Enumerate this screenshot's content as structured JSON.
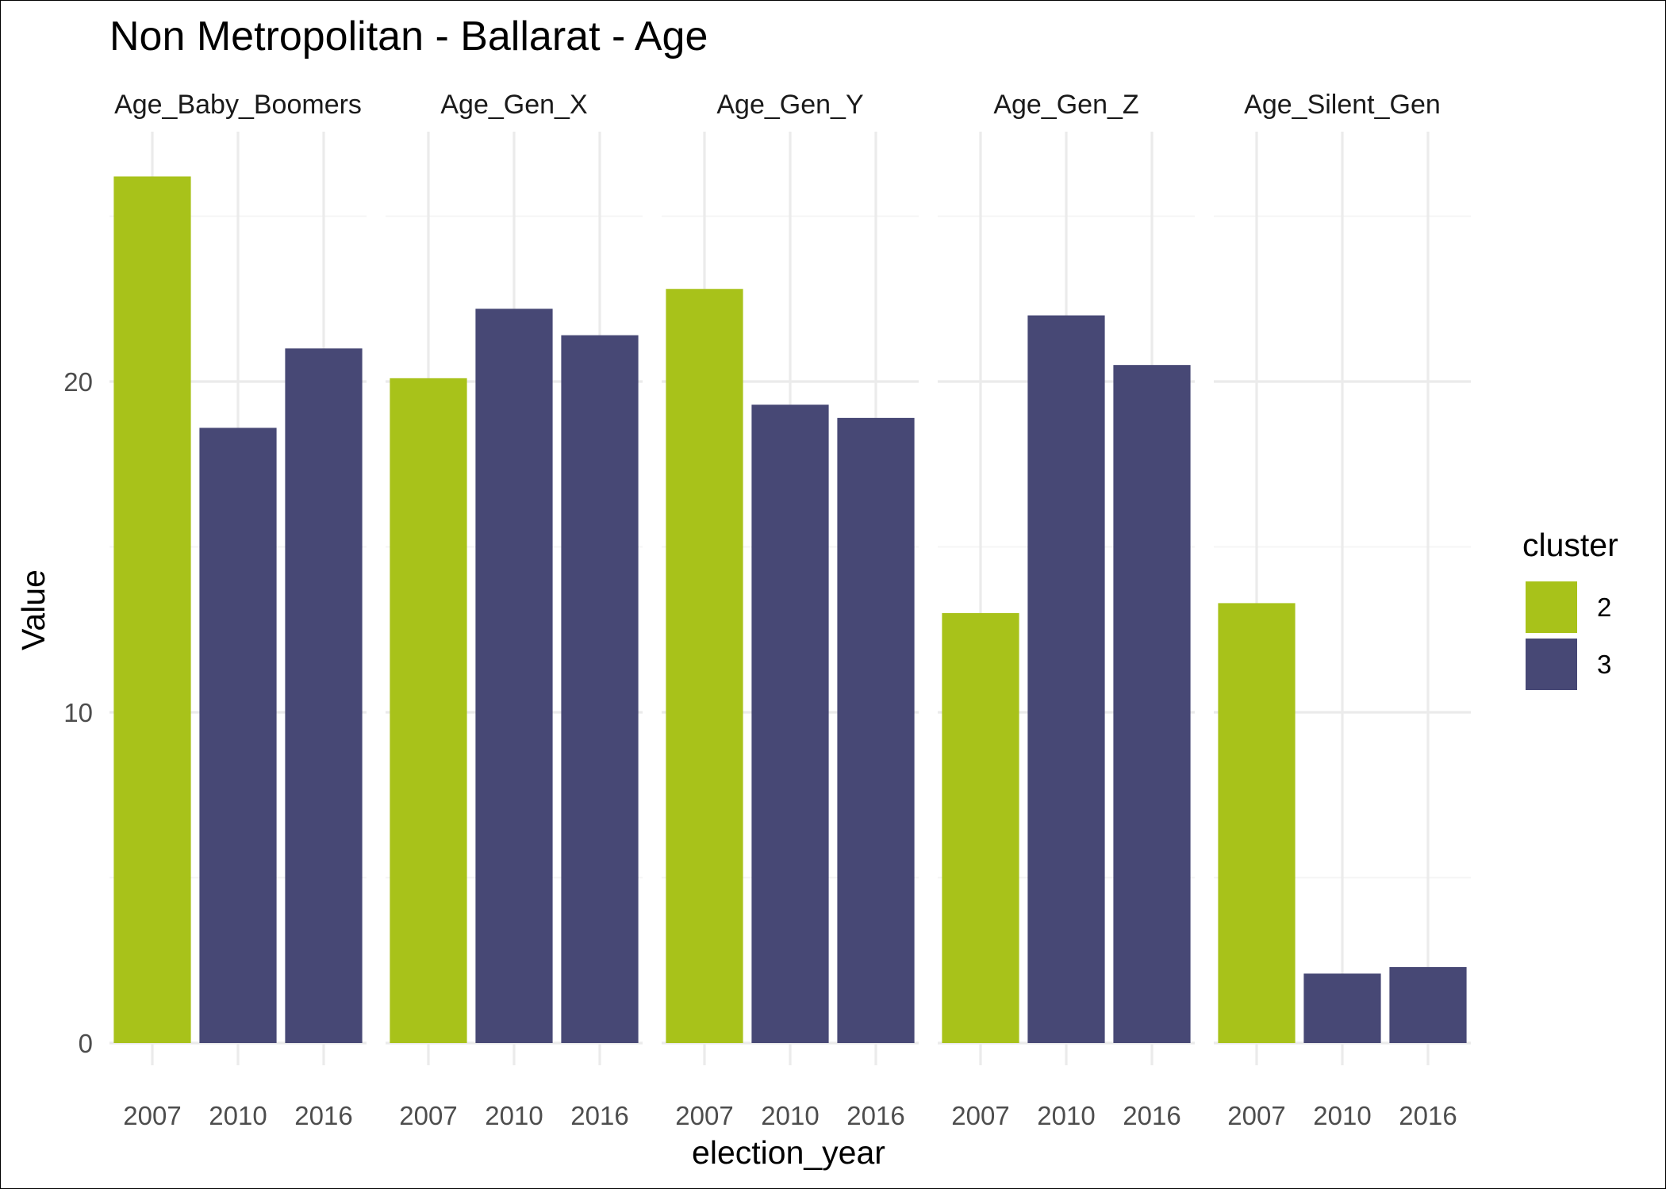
{
  "chart_data": {
    "type": "bar",
    "title": "Non Metropolitan - Ballarat - Age",
    "xlabel": "election_year",
    "ylabel": "Value",
    "ylim": [
      0,
      27.5
    ],
    "yticks": [
      0,
      10,
      20
    ],
    "grid": true,
    "categories": [
      "2007",
      "2010",
      "2016"
    ],
    "facets": [
      {
        "name": "Age_Baby_Boomers",
        "values": [
          26.2,
          18.6,
          21.0
        ],
        "clusters": [
          "2",
          "3",
          "3"
        ]
      },
      {
        "name": "Age_Gen_X",
        "values": [
          20.1,
          22.2,
          21.4
        ],
        "clusters": [
          "2",
          "3",
          "3"
        ]
      },
      {
        "name": "Age_Gen_Y",
        "values": [
          22.8,
          19.3,
          18.9
        ],
        "clusters": [
          "2",
          "3",
          "3"
        ]
      },
      {
        "name": "Age_Gen_Z",
        "values": [
          13.0,
          22.0,
          20.5
        ],
        "clusters": [
          "2",
          "3",
          "3"
        ]
      },
      {
        "name": "Age_Silent_Gen",
        "values": [
          13.3,
          2.1,
          2.3
        ],
        "clusters": [
          "2",
          "3",
          "3"
        ]
      }
    ],
    "legend": {
      "title": "cluster",
      "position": "right",
      "entries": [
        {
          "label": "2",
          "color": "#a8c21a"
        },
        {
          "label": "3",
          "color": "#474875"
        }
      ]
    }
  }
}
